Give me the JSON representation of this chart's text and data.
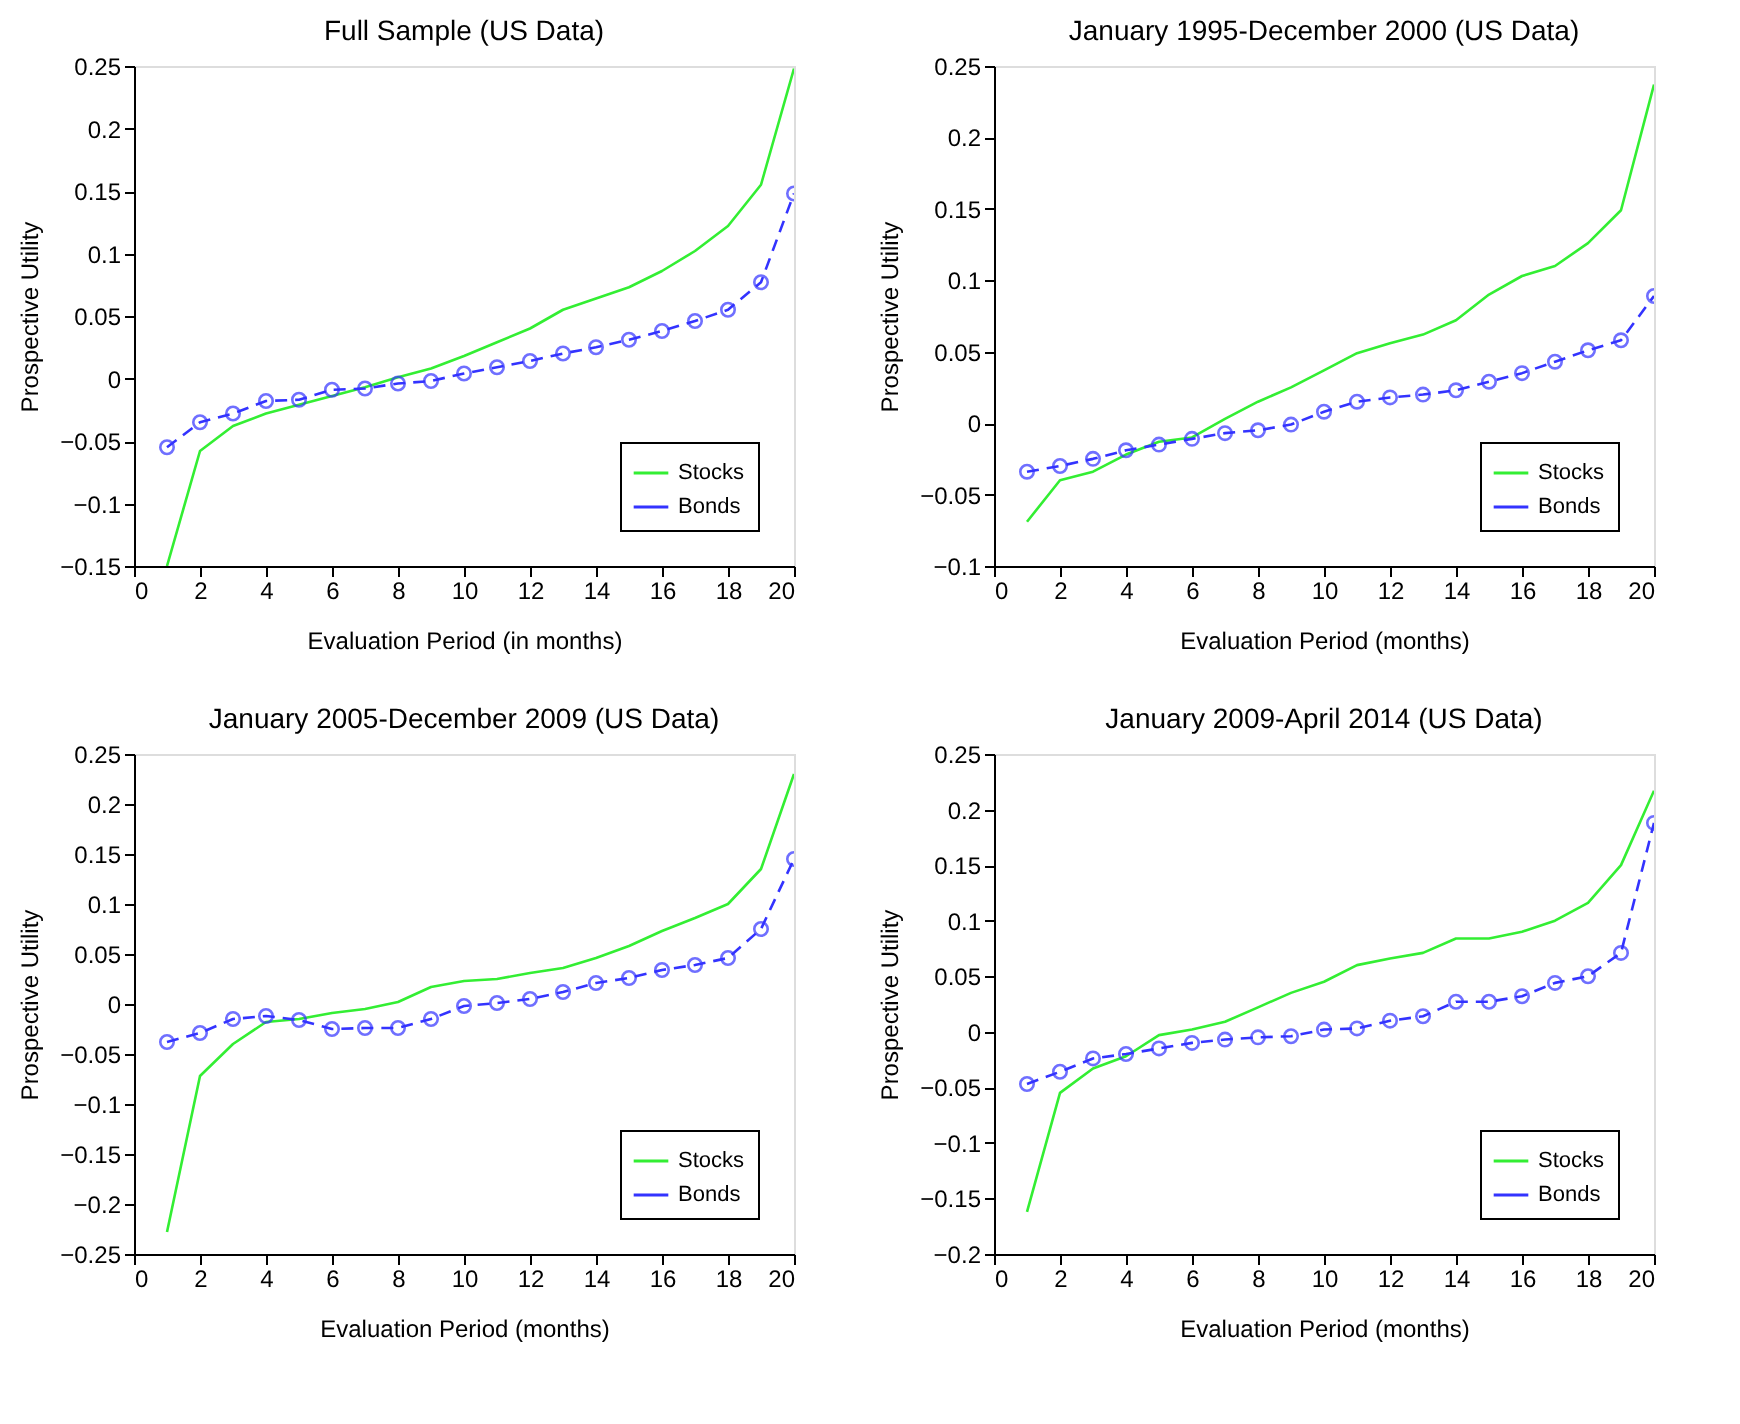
{
  "chart_data": [
    {
      "type": "line",
      "title": "Full Sample (US Data)",
      "xlabel": "Evaluation Period (in months)",
      "ylabel": "Prospective Utility",
      "x": [
        1,
        2,
        3,
        4,
        5,
        6,
        7,
        8,
        9,
        10,
        11,
        12,
        13,
        14,
        15,
        16,
        17,
        18,
        19,
        20
      ],
      "xlim": [
        0,
        20
      ],
      "xticks": [
        0,
        2,
        4,
        6,
        8,
        10,
        12,
        14,
        16,
        18,
        20
      ],
      "ylim": [
        -0.15,
        0.25
      ],
      "yticks": [
        -0.15,
        -0.1,
        -0.05,
        0,
        0.05,
        0.1,
        0.15,
        0.2,
        0.25
      ],
      "grid": false,
      "legend": "bottom right",
      "series": [
        {
          "name": "Stocks",
          "color": "#33ee33",
          "marker": "none",
          "line_style": "solid",
          "values": [
            -0.15,
            -0.058,
            -0.038,
            -0.028,
            -0.021,
            -0.014,
            -0.007,
            0.001,
            0.008,
            0.018,
            0.029,
            0.04,
            0.055,
            0.064,
            0.073,
            0.086,
            0.102,
            0.122,
            0.155,
            0.248
          ]
        },
        {
          "name": "Bonds",
          "color": "#3333ff",
          "marker": "circle",
          "line_style": "dashed",
          "values": [
            -0.055,
            -0.035,
            -0.028,
            -0.018,
            -0.017,
            -0.009,
            -0.008,
            -0.004,
            -0.002,
            0.004,
            0.009,
            0.014,
            0.02,
            0.025,
            0.031,
            0.038,
            0.046,
            0.055,
            0.077,
            0.148
          ]
        }
      ]
    },
    {
      "type": "line",
      "title": "January 1995-December 2000 (US Data)",
      "xlabel": "Evaluation Period (months)",
      "ylabel": "Prospective Utility",
      "x": [
        1,
        2,
        3,
        4,
        5,
        6,
        7,
        8,
        9,
        10,
        11,
        12,
        13,
        14,
        15,
        16,
        17,
        18,
        19,
        20
      ],
      "xlim": [
        0,
        20
      ],
      "xticks": [
        0,
        2,
        4,
        6,
        8,
        10,
        12,
        14,
        16,
        18,
        20
      ],
      "ylim": [
        -0.1,
        0.25
      ],
      "yticks": [
        -0.1,
        -0.05,
        0,
        0.05,
        0.1,
        0.15,
        0.2,
        0.25
      ],
      "grid": false,
      "legend": "bottom right",
      "series": [
        {
          "name": "Stocks",
          "color": "#33ee33",
          "marker": "none",
          "line_style": "solid",
          "values": [
            -0.069,
            -0.04,
            -0.034,
            -0.022,
            -0.013,
            -0.01,
            0.003,
            0.015,
            0.025,
            0.037,
            0.049,
            0.056,
            0.062,
            0.072,
            0.09,
            0.103,
            0.11,
            0.126,
            0.149,
            0.237
          ]
        },
        {
          "name": "Bonds",
          "color": "#3333ff",
          "marker": "circle",
          "line_style": "dashed",
          "values": [
            -0.034,
            -0.03,
            -0.025,
            -0.019,
            -0.015,
            -0.011,
            -0.007,
            -0.005,
            -0.001,
            0.008,
            0.015,
            0.018,
            0.02,
            0.023,
            0.029,
            0.035,
            0.043,
            0.051,
            0.058,
            0.089
          ]
        }
      ]
    },
    {
      "type": "line",
      "title": "January 2005-December 2009 (US Data)",
      "xlabel": "Evaluation Period (months)",
      "ylabel": "Prospective Utility",
      "x": [
        1,
        2,
        3,
        4,
        5,
        6,
        7,
        8,
        9,
        10,
        11,
        12,
        13,
        14,
        15,
        16,
        17,
        18,
        19,
        20
      ],
      "xlim": [
        0,
        20
      ],
      "xticks": [
        0,
        2,
        4,
        6,
        8,
        10,
        12,
        14,
        16,
        18,
        20
      ],
      "ylim": [
        -0.25,
        0.25
      ],
      "yticks": [
        -0.25,
        -0.2,
        -0.15,
        -0.1,
        -0.05,
        0,
        0.05,
        0.1,
        0.15,
        0.2,
        0.25
      ],
      "grid": false,
      "legend": "bottom right",
      "series": [
        {
          "name": "Stocks",
          "color": "#33ee33",
          "marker": "none",
          "line_style": "solid",
          "values": [
            -0.228,
            -0.072,
            -0.04,
            -0.018,
            -0.015,
            -0.009,
            -0.005,
            0.002,
            0.017,
            0.023,
            0.025,
            0.031,
            0.036,
            0.046,
            0.058,
            0.073,
            0.086,
            0.1,
            0.135,
            0.23
          ]
        },
        {
          "name": "Bonds",
          "color": "#3333ff",
          "marker": "circle",
          "line_style": "dashed",
          "values": [
            -0.038,
            -0.029,
            -0.015,
            -0.012,
            -0.016,
            -0.025,
            -0.024,
            -0.024,
            -0.015,
            -0.002,
            0.001,
            0.005,
            0.012,
            0.021,
            0.026,
            0.034,
            0.039,
            0.046,
            0.075,
            0.145
          ]
        }
      ]
    },
    {
      "type": "line",
      "title": "January 2009-April 2014 (US Data)",
      "xlabel": "Evaluation Period (months)",
      "ylabel": "Prospective Utility",
      "x": [
        1,
        2,
        3,
        4,
        5,
        6,
        7,
        8,
        9,
        10,
        11,
        12,
        13,
        14,
        15,
        16,
        17,
        18,
        19,
        20
      ],
      "xlim": [
        0,
        20
      ],
      "xticks": [
        0,
        2,
        4,
        6,
        8,
        10,
        12,
        14,
        16,
        18,
        20
      ],
      "ylim": [
        -0.2,
        0.25
      ],
      "yticks": [
        -0.2,
        -0.15,
        -0.1,
        -0.05,
        0,
        0.05,
        0.1,
        0.15,
        0.2,
        0.25
      ],
      "grid": false,
      "legend": "bottom right",
      "series": [
        {
          "name": "Stocks",
          "color": "#33ee33",
          "marker": "none",
          "line_style": "solid",
          "values": [
            -0.162,
            -0.055,
            -0.033,
            -0.022,
            -0.003,
            0.002,
            0.009,
            0.022,
            0.035,
            0.045,
            0.06,
            0.066,
            0.071,
            0.084,
            0.084,
            0.09,
            0.1,
            0.116,
            0.15,
            0.217
          ]
        },
        {
          "name": "Bonds",
          "color": "#3333ff",
          "marker": "circle",
          "line_style": "dashed",
          "values": [
            -0.047,
            -0.036,
            -0.024,
            -0.02,
            -0.015,
            -0.01,
            -0.007,
            -0.005,
            -0.004,
            0.002,
            0.003,
            0.01,
            0.014,
            0.027,
            0.027,
            0.032,
            0.044,
            0.05,
            0.071,
            0.188
          ]
        }
      ]
    }
  ]
}
